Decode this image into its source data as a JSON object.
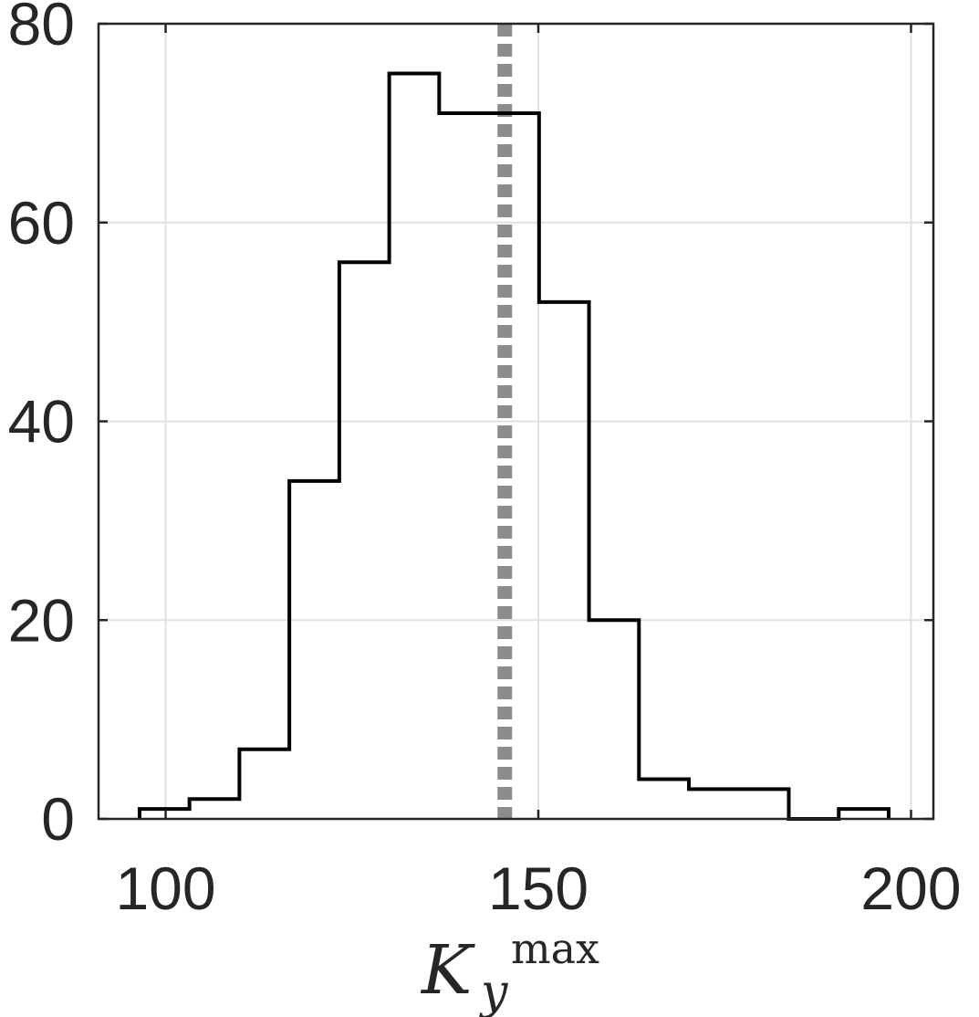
{
  "chart_data": {
    "type": "histogram",
    "title": "",
    "xlabel": {
      "base": "K",
      "subscript": "y",
      "superscript": "max"
    },
    "ylabel": "",
    "xlim": [
      91,
      203
    ],
    "ylim": [
      0,
      80
    ],
    "xticks": [
      100,
      150,
      200
    ],
    "yticks": [
      0,
      20,
      40,
      60,
      80
    ],
    "grid": true,
    "bin_width": 6.7,
    "bin_edges": [
      96.5,
      103.2,
      109.9,
      116.6,
      123.3,
      130.0,
      136.7,
      143.4,
      150.1,
      156.8,
      163.5,
      170.2,
      176.9,
      183.6,
      190.3,
      197.0
    ],
    "counts": [
      1,
      2,
      7,
      34,
      56,
      75,
      71,
      71,
      52,
      20,
      4,
      3,
      3,
      0,
      1
    ],
    "reference_line": {
      "x": 145.5,
      "style": "dotted",
      "color": "#8c8c8c"
    },
    "colors": {
      "histogram": "#000000",
      "axes": "#262626",
      "grid": "#e0e0e0"
    }
  }
}
